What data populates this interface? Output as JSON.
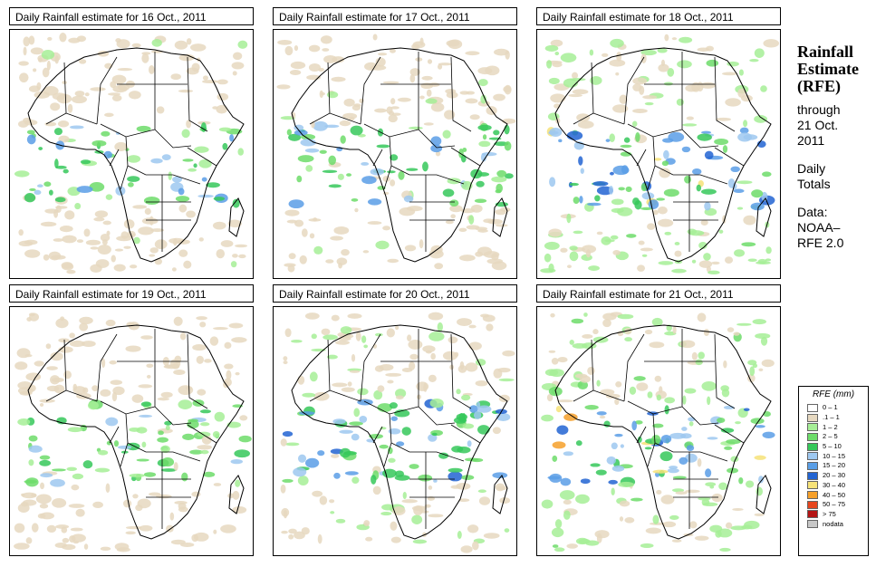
{
  "panels": [
    {
      "title": "Daily Rainfall estimate for  16 Oct., 2011"
    },
    {
      "title": "Daily Rainfall estimate for  17 Oct., 2011"
    },
    {
      "title": "Daily Rainfall estimate for  18 Oct., 2011"
    },
    {
      "title": "Daily Rainfall estimate for  19 Oct., 2011"
    },
    {
      "title": "Daily Rainfall estimate for  20 Oct., 2011"
    },
    {
      "title": "Daily Rainfall estimate for  21 Oct., 2011"
    }
  ],
  "side": {
    "title_line1": "Rainfall",
    "title_line2": "Estimate",
    "title_line3": "(RFE)",
    "through": "through",
    "date_line1": "21 Oct.",
    "date_line2": "2011",
    "daily": "Daily",
    "totals": "Totals",
    "data_label": "Data:",
    "source_line1": "NOAA–",
    "source_line2": "RFE 2.0"
  },
  "legend": {
    "title": "RFE (mm)",
    "items": [
      {
        "label": "0 – 1",
        "color": "#ffffff"
      },
      {
        "label": ".1 – 1",
        "color": "#e6d8c0"
      },
      {
        "label": "1 – 2",
        "color": "#a6ee96"
      },
      {
        "label": "2 – 5",
        "color": "#6ddc6a"
      },
      {
        "label": "5 – 10",
        "color": "#36c85a"
      },
      {
        "label": "10 – 15",
        "color": "#9ec8f0"
      },
      {
        "label": "15 – 20",
        "color": "#5a9ee6"
      },
      {
        "label": "20 – 30",
        "color": "#2264d2"
      },
      {
        "label": "30 – 40",
        "color": "#f6e278"
      },
      {
        "label": "40 – 50",
        "color": "#f6a02a"
      },
      {
        "label": "50 – 75",
        "color": "#e6461e"
      },
      {
        "label": "> 75",
        "color": "#b41414"
      },
      {
        "label": "nodata",
        "color": "#c8c8c8"
      }
    ]
  }
}
